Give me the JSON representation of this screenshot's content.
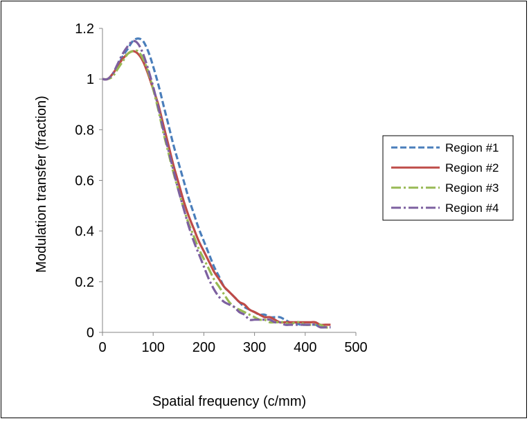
{
  "chart_data": {
    "type": "line",
    "title": "",
    "xlabel": "Spatial frequency (c/mm)",
    "ylabel": "Modulation transfer (fraction)",
    "xlim": [
      0,
      500
    ],
    "ylim": [
      0,
      1.2
    ],
    "x_ticks": [
      "0",
      "100",
      "200",
      "300",
      "400",
      "500"
    ],
    "y_ticks": [
      "0",
      "0.2",
      "0.4",
      "0.6",
      "0.8",
      "1",
      "1.2"
    ],
    "grid": false,
    "legend_position": "right",
    "series": [
      {
        "name": "Region #1",
        "color": "#4A7EBB",
        "dash": "dashed",
        "x": [
          0,
          10,
          20,
          30,
          40,
          50,
          60,
          70,
          80,
          90,
          100,
          110,
          120,
          130,
          140,
          150,
          160,
          170,
          180,
          190,
          200,
          210,
          220,
          230,
          240,
          250,
          260,
          270,
          280,
          290,
          300,
          310,
          320,
          330,
          340,
          350,
          360,
          370,
          380,
          390,
          400,
          410,
          420,
          430,
          440,
          450
        ],
        "y": [
          1.0,
          1.0,
          1.02,
          1.05,
          1.09,
          1.12,
          1.15,
          1.16,
          1.15,
          1.11,
          1.05,
          0.98,
          0.9,
          0.82,
          0.74,
          0.67,
          0.6,
          0.53,
          0.47,
          0.41,
          0.36,
          0.31,
          0.26,
          0.22,
          0.18,
          0.16,
          0.14,
          0.12,
          0.1,
          0.09,
          0.08,
          0.07,
          0.07,
          0.06,
          0.06,
          0.06,
          0.05,
          0.04,
          0.04,
          0.03,
          0.03,
          0.03,
          0.03,
          0.02,
          0.02,
          0.02
        ]
      },
      {
        "name": "Region #2",
        "color": "#BE4B48",
        "dash": "solid",
        "x": [
          0,
          10,
          20,
          30,
          40,
          50,
          60,
          70,
          80,
          90,
          100,
          110,
          120,
          130,
          140,
          150,
          160,
          170,
          180,
          190,
          200,
          210,
          220,
          230,
          240,
          250,
          260,
          270,
          280,
          290,
          300,
          310,
          320,
          330,
          340,
          350,
          360,
          370,
          380,
          390,
          400,
          410,
          420,
          430,
          440,
          450
        ],
        "y": [
          1.0,
          1.0,
          1.02,
          1.05,
          1.08,
          1.1,
          1.11,
          1.1,
          1.07,
          1.02,
          0.96,
          0.9,
          0.82,
          0.74,
          0.66,
          0.59,
          0.52,
          0.46,
          0.41,
          0.36,
          0.32,
          0.28,
          0.24,
          0.21,
          0.18,
          0.16,
          0.14,
          0.12,
          0.11,
          0.09,
          0.08,
          0.07,
          0.06,
          0.06,
          0.05,
          0.04,
          0.04,
          0.04,
          0.04,
          0.04,
          0.04,
          0.04,
          0.04,
          0.03,
          0.03,
          0.03
        ]
      },
      {
        "name": "Region #3",
        "color": "#98B954",
        "dash": "dashdot",
        "x": [
          0,
          10,
          20,
          30,
          40,
          50,
          60,
          70,
          80,
          90,
          100,
          110,
          120,
          130,
          140,
          150,
          160,
          170,
          180,
          190,
          200,
          210,
          220,
          230,
          240,
          250,
          260,
          270,
          280,
          290,
          300,
          310,
          320,
          330,
          340,
          350,
          360,
          370,
          380,
          390,
          400,
          410,
          420,
          430,
          440,
          450
        ],
        "y": [
          1.0,
          1.0,
          1.01,
          1.04,
          1.07,
          1.1,
          1.11,
          1.11,
          1.08,
          1.03,
          0.96,
          0.88,
          0.79,
          0.71,
          0.63,
          0.56,
          0.49,
          0.43,
          0.38,
          0.33,
          0.29,
          0.25,
          0.21,
          0.18,
          0.15,
          0.12,
          0.1,
          0.09,
          0.08,
          0.07,
          0.06,
          0.05,
          0.05,
          0.04,
          0.04,
          0.04,
          0.04,
          0.03,
          0.04,
          0.04,
          0.03,
          0.03,
          0.03,
          0.03,
          0.02,
          0.02
        ]
      },
      {
        "name": "Region #4",
        "color": "#7D60A0",
        "dash": "dashdot",
        "x": [
          0,
          10,
          20,
          30,
          40,
          50,
          60,
          70,
          80,
          90,
          100,
          110,
          120,
          130,
          140,
          150,
          160,
          170,
          180,
          190,
          200,
          210,
          220,
          230,
          240,
          250,
          260,
          270,
          280,
          290,
          300,
          310,
          320,
          330,
          340,
          350,
          360,
          370,
          380,
          390,
          400,
          410,
          420,
          430,
          440,
          450
        ],
        "y": [
          1.0,
          1.0,
          1.02,
          1.06,
          1.1,
          1.13,
          1.15,
          1.14,
          1.1,
          1.04,
          0.97,
          0.89,
          0.8,
          0.72,
          0.64,
          0.56,
          0.49,
          0.42,
          0.36,
          0.31,
          0.26,
          0.21,
          0.17,
          0.14,
          0.12,
          0.11,
          0.1,
          0.08,
          0.07,
          0.05,
          0.05,
          0.05,
          0.05,
          0.05,
          0.04,
          0.04,
          0.03,
          0.03,
          0.03,
          0.03,
          0.03,
          0.03,
          0.03,
          0.02,
          0.02,
          0.02
        ]
      }
    ]
  }
}
